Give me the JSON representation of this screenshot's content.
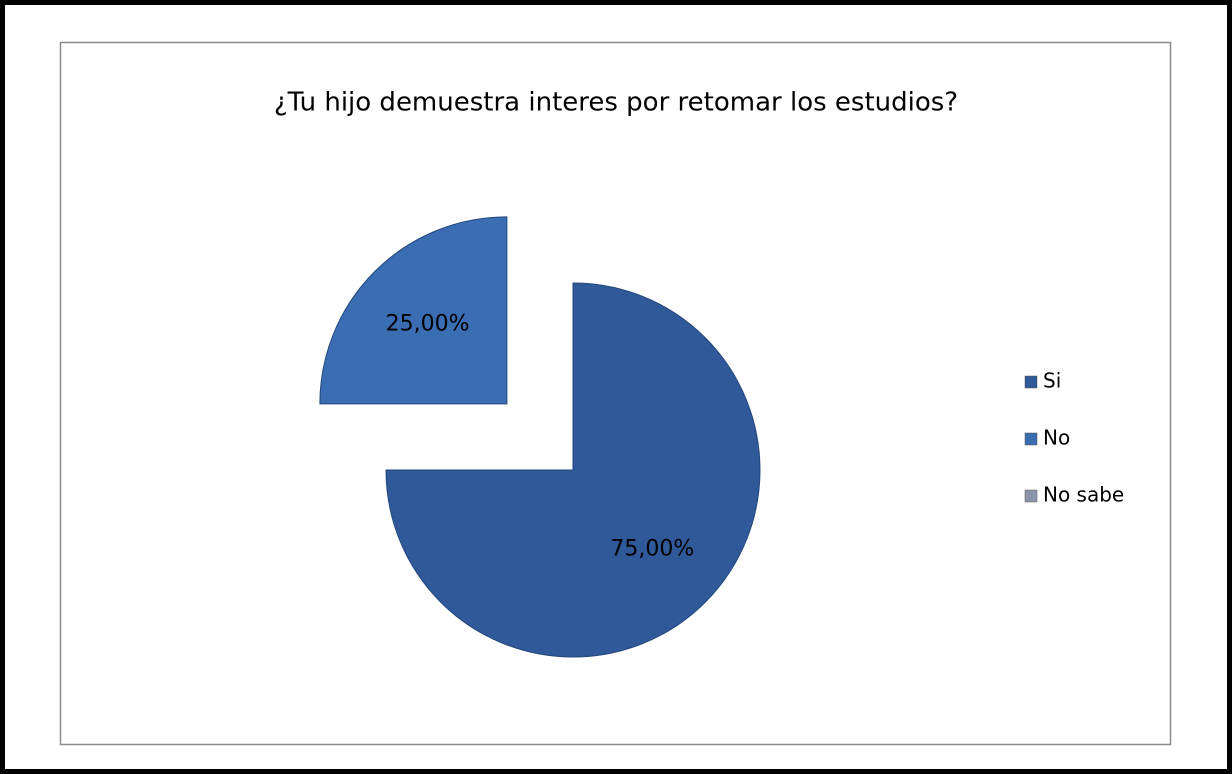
{
  "chart_data": {
    "type": "pie",
    "title": "¿Tu hijo demuestra interes por retomar los estudios?",
    "categories": [
      "Si",
      "No",
      "No sabe"
    ],
    "values": [
      75,
      25,
      0
    ],
    "value_labels": [
      "75,00%",
      "25,00%",
      null
    ],
    "colors": [
      "#30599a",
      "#3b6db3",
      "#8c96aa"
    ],
    "explode": [
      false,
      true,
      false
    ],
    "legend": "right"
  }
}
